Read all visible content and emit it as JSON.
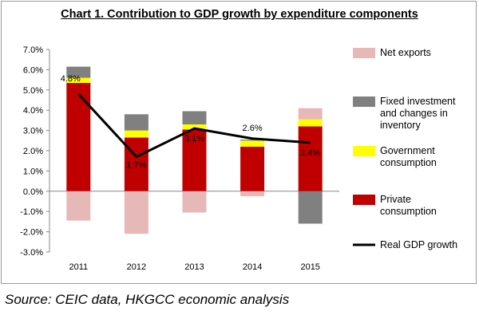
{
  "chart_data": {
    "type": "bar",
    "title": "Chart 1. Contribution to GDP growth by expenditure components",
    "categories": [
      "2011",
      "2012",
      "2013",
      "2014",
      "2015"
    ],
    "ylim": [
      -3.0,
      7.0
    ],
    "yticks": [
      -3.0,
      -2.0,
      -1.0,
      0.0,
      1.0,
      2.0,
      3.0,
      4.0,
      5.0,
      6.0,
      7.0
    ],
    "ytick_labels": [
      "-3.0%",
      "-2.0%",
      "-1.0%",
      "0.0%",
      "1.0%",
      "2.0%",
      "3.0%",
      "4.0%",
      "5.0%",
      "6.0%",
      "7.0%"
    ],
    "series": [
      {
        "name": "Private consumption",
        "kind": "bar",
        "color": "#c00000",
        "values": [
          5.35,
          2.65,
          3.05,
          2.2,
          3.2
        ]
      },
      {
        "name": "Government consumption",
        "kind": "bar",
        "color": "#ffff00",
        "values": [
          0.25,
          0.35,
          0.25,
          0.3,
          0.35
        ]
      },
      {
        "name": "Fixed investment and changes in inventory",
        "kind": "bar",
        "color": "#808080",
        "values": [
          0.55,
          0.8,
          0.65,
          0.05,
          -1.6
        ]
      },
      {
        "name": "Net exports",
        "kind": "bar",
        "color": "#e6b9b8",
        "values": [
          -1.45,
          -2.1,
          -1.05,
          -0.25,
          0.55
        ]
      },
      {
        "name": "Real GDP growth",
        "kind": "line",
        "color": "#000000",
        "values": [
          4.8,
          1.7,
          3.1,
          2.6,
          2.4
        ]
      }
    ],
    "data_labels": [
      "4.8%",
      "1.7%",
      "3.1%",
      "2.6%",
      "2.4%"
    ],
    "legend": {
      "placement": "right",
      "entries": [
        {
          "lines": [
            "Net exports"
          ],
          "color": "#e6b9b8",
          "kind": "box"
        },
        {
          "lines": [
            "Fixed investment",
            "and changes in",
            "inventory"
          ],
          "color": "#808080",
          "kind": "box"
        },
        {
          "lines": [
            "Government",
            "consumption"
          ],
          "color": "#ffff00",
          "kind": "box"
        },
        {
          "lines": [
            "Private",
            "consumption"
          ],
          "color": "#c00000",
          "kind": "box"
        },
        {
          "lines": [
            "Real GDP growth"
          ],
          "color": "#000000",
          "kind": "line"
        }
      ]
    },
    "grid": false
  },
  "source_text": "Source: CEIC data, HKGCC economic analysis"
}
